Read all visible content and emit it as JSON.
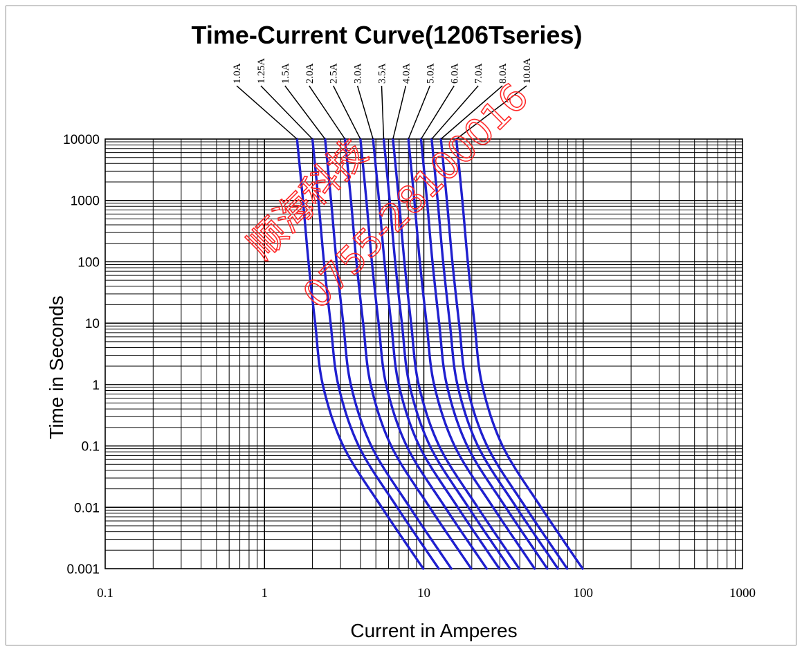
{
  "chart_data": {
    "type": "line",
    "title": "Time-Current Curve(1206Tseries)",
    "xlabel": "Current in Amperes",
    "ylabel": "Time in Seconds",
    "x_scale": "log",
    "y_scale": "log",
    "xlim": [
      0.1,
      1000
    ],
    "ylim": [
      0.001,
      10000
    ],
    "grid": true,
    "xticks": [
      {
        "v": 0.1,
        "label": "0.1"
      },
      {
        "v": 1,
        "label": "1"
      },
      {
        "v": 10,
        "label": "10"
      },
      {
        "v": 100,
        "label": "100"
      },
      {
        "v": 1000,
        "label": "1000"
      }
    ],
    "yticks": [
      {
        "v": 10000,
        "label": "10000"
      },
      {
        "v": 1000,
        "label": "1000"
      },
      {
        "v": 100,
        "label": "100"
      },
      {
        "v": 10,
        "label": "10"
      },
      {
        "v": 1,
        "label": "1"
      },
      {
        "v": 0.1,
        "label": "0.1"
      },
      {
        "v": 0.01,
        "label": "0.01"
      },
      {
        "v": 0.001,
        "label": "0.001"
      }
    ],
    "line_color": "#1f1fcf",
    "curve_shape_y": [
      10000,
      1000,
      100,
      10,
      1,
      0.1,
      0.01,
      0.001
    ],
    "curve_shape_x_factor": [
      1.0,
      1.09,
      1.18,
      1.3,
      1.45,
      1.95,
      3.4,
      6.2
    ],
    "series": [
      {
        "name": "1.0A",
        "x_at_10000s": 1.6
      },
      {
        "name": "1.25A",
        "x_at_10000s": 2.0
      },
      {
        "name": "1.5A",
        "x_at_10000s": 2.4
      },
      {
        "name": "2.0A",
        "x_at_10000s": 3.2
      },
      {
        "name": "2.5A",
        "x_at_10000s": 4.0
      },
      {
        "name": "3.0A",
        "x_at_10000s": 4.8
      },
      {
        "name": "3.5A",
        "x_at_10000s": 5.6
      },
      {
        "name": "4.0A",
        "x_at_10000s": 6.4
      },
      {
        "name": "5.0A",
        "x_at_10000s": 8.0
      },
      {
        "name": "6.0A",
        "x_at_10000s": 9.6
      },
      {
        "name": "7.0A",
        "x_at_10000s": 11.2
      },
      {
        "name": "8.0A",
        "x_at_10000s": 12.8
      },
      {
        "name": "10.0A",
        "x_at_10000s": 16.0
      }
    ]
  },
  "watermark": {
    "line1": "顺海科技",
    "line2": "0755-28100016",
    "color": "#ff2a2a"
  }
}
